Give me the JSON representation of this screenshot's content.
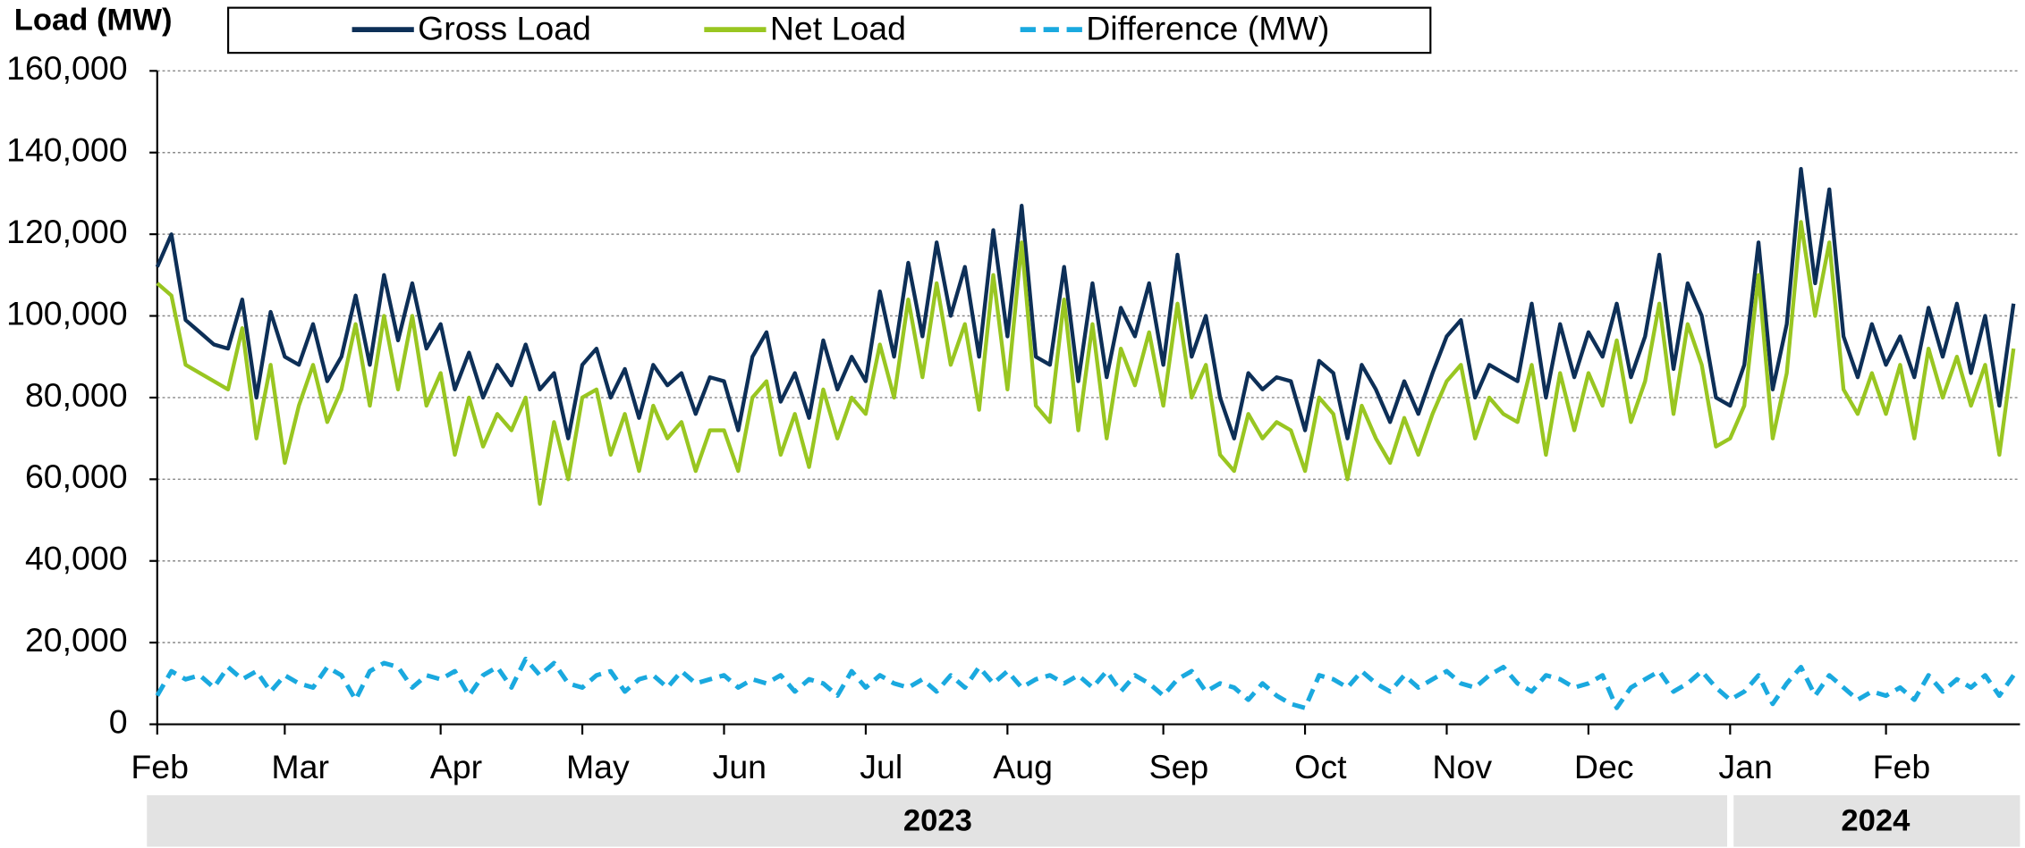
{
  "chart_data": {
    "type": "line",
    "y_label": "Load (MW)",
    "categories": [
      "Feb",
      null,
      null,
      null,
      null,
      null,
      null,
      null,
      null,
      "Mar",
      null,
      null,
      null,
      null,
      null,
      null,
      null,
      null,
      null,
      null,
      "Apr",
      null,
      null,
      null,
      null,
      null,
      null,
      null,
      null,
      null,
      "May",
      null,
      null,
      null,
      null,
      null,
      null,
      null,
      null,
      null,
      "Jun",
      null,
      null,
      null,
      null,
      null,
      null,
      null,
      null,
      null,
      "Jul",
      null,
      null,
      null,
      null,
      null,
      null,
      null,
      null,
      null,
      "Aug",
      null,
      null,
      null,
      null,
      null,
      null,
      null,
      null,
      null,
      null,
      "Sep",
      null,
      null,
      null,
      null,
      null,
      null,
      null,
      null,
      null,
      "Oct",
      null,
      null,
      null,
      null,
      null,
      null,
      null,
      null,
      null,
      "Nov",
      null,
      null,
      null,
      null,
      null,
      null,
      null,
      null,
      null,
      "Dec",
      null,
      null,
      null,
      null,
      null,
      null,
      null,
      null,
      null,
      "Jan",
      null,
      null,
      null,
      null,
      null,
      null,
      null,
      null,
      null,
      null,
      "Feb",
      null,
      null,
      null,
      null,
      null,
      null,
      null,
      null,
      null
    ],
    "years": [
      "2023",
      "2024"
    ],
    "series": [
      {
        "name": "Gross Load",
        "color": "#0d2f57",
        "dashed": false,
        "values": [
          112000,
          120000,
          99000,
          96000,
          93000,
          92000,
          104000,
          80000,
          101000,
          90000,
          88000,
          98000,
          84000,
          90000,
          105000,
          88000,
          110000,
          94000,
          108000,
          92000,
          98000,
          82000,
          91000,
          80000,
          88000,
          83000,
          93000,
          82000,
          86000,
          70000,
          88000,
          92000,
          80000,
          87000,
          75000,
          88000,
          83000,
          86000,
          76000,
          85000,
          84000,
          72000,
          90000,
          96000,
          79000,
          86000,
          75000,
          94000,
          82000,
          90000,
          84000,
          106000,
          90000,
          113000,
          95000,
          118000,
          100000,
          112000,
          90000,
          121000,
          95000,
          127000,
          90000,
          88000,
          112000,
          84000,
          108000,
          85000,
          102000,
          95000,
          108000,
          88000,
          115000,
          90000,
          100000,
          80000,
          70000,
          86000,
          82000,
          85000,
          84000,
          72000,
          89000,
          86000,
          70000,
          88000,
          82000,
          74000,
          84000,
          76000,
          86000,
          95000,
          99000,
          80000,
          88000,
          86000,
          84000,
          103000,
          80000,
          98000,
          85000,
          96000,
          90000,
          103000,
          85000,
          95000,
          115000,
          87000,
          108000,
          100000,
          80000,
          78000,
          88000,
          118000,
          82000,
          98000,
          136000,
          108000,
          131000,
          95000,
          85000,
          98000,
          88000,
          95000,
          85000,
          102000,
          90000,
          103000,
          86000,
          100000,
          78000,
          103000
        ]
      },
      {
        "name": "Net Load",
        "color": "#99c621",
        "dashed": false,
        "values": [
          108000,
          105000,
          88000,
          86000,
          84000,
          82000,
          97000,
          70000,
          88000,
          64000,
          78000,
          88000,
          74000,
          82000,
          98000,
          78000,
          100000,
          82000,
          100000,
          78000,
          86000,
          66000,
          80000,
          68000,
          76000,
          72000,
          80000,
          54000,
          74000,
          60000,
          80000,
          82000,
          66000,
          76000,
          62000,
          78000,
          70000,
          74000,
          62000,
          72000,
          72000,
          62000,
          80000,
          84000,
          66000,
          76000,
          63000,
          82000,
          70000,
          80000,
          76000,
          93000,
          80000,
          104000,
          85000,
          108000,
          88000,
          98000,
          77000,
          110000,
          82000,
          118000,
          78000,
          74000,
          104000,
          72000,
          98000,
          70000,
          92000,
          83000,
          96000,
          78000,
          103000,
          80000,
          88000,
          66000,
          62000,
          76000,
          70000,
          74000,
          72000,
          62000,
          80000,
          76000,
          60000,
          78000,
          70000,
          64000,
          75000,
          66000,
          76000,
          84000,
          88000,
          70000,
          80000,
          76000,
          74000,
          88000,
          66000,
          86000,
          72000,
          86000,
          78000,
          94000,
          74000,
          84000,
          103000,
          76000,
          98000,
          88000,
          68000,
          70000,
          78000,
          110000,
          70000,
          86000,
          123000,
          100000,
          118000,
          82000,
          76000,
          86000,
          76000,
          88000,
          70000,
          92000,
          80000,
          90000,
          78000,
          88000,
          66000,
          92000
        ]
      },
      {
        "name": "Difference (MW)",
        "color": "#1aa9df",
        "dashed": true,
        "values": [
          7000,
          13000,
          11000,
          12000,
          9000,
          14000,
          11000,
          13000,
          8000,
          12000,
          10000,
          9000,
          14000,
          12000,
          6000,
          13000,
          15000,
          14000,
          9000,
          12000,
          11000,
          13000,
          7000,
          12000,
          14000,
          9000,
          16000,
          12000,
          15000,
          10000,
          9000,
          12000,
          13000,
          8000,
          11000,
          12000,
          9000,
          13000,
          10000,
          11000,
          12000,
          9000,
          11000,
          10000,
          12000,
          8000,
          11000,
          10000,
          7000,
          13000,
          9000,
          12000,
          10000,
          9000,
          11000,
          8000,
          12000,
          9000,
          14000,
          10000,
          13000,
          9000,
          11000,
          12000,
          10000,
          12000,
          9000,
          13000,
          8000,
          12000,
          10000,
          7000,
          11000,
          13000,
          8000,
          10000,
          9000,
          6000,
          10000,
          7000,
          5000,
          4000,
          12000,
          11000,
          9000,
          13000,
          10000,
          8000,
          12000,
          9000,
          11000,
          13000,
          10000,
          9000,
          12000,
          14000,
          10000,
          8000,
          12000,
          11000,
          9000,
          10000,
          12000,
          4000,
          9000,
          11000,
          13000,
          8000,
          10000,
          13000,
          9000,
          6000,
          8000,
          12000,
          5000,
          10000,
          14000,
          7000,
          12000,
          9000,
          6000,
          8000,
          7000,
          9000,
          6000,
          12000,
          8000,
          11000,
          9000,
          12000,
          7000,
          12000
        ]
      }
    ],
    "ylim": [
      0,
      160000
    ],
    "yticks": [
      0,
      {
        "value": 20000,
        "label": "20,000"
      },
      {
        "value": 40000,
        "label": "40,000"
      },
      {
        "value": 60000,
        "label": "60,000"
      },
      {
        "value": 80000,
        "label": "80,000"
      },
      {
        "value": 100000,
        "label": "100,000"
      },
      {
        "value": 120000,
        "label": "120,000"
      },
      {
        "value": 140000,
        "label": "140,000"
      },
      {
        "value": 160000,
        "label": "160,000"
      }
    ],
    "grid": true,
    "legend": "top"
  }
}
